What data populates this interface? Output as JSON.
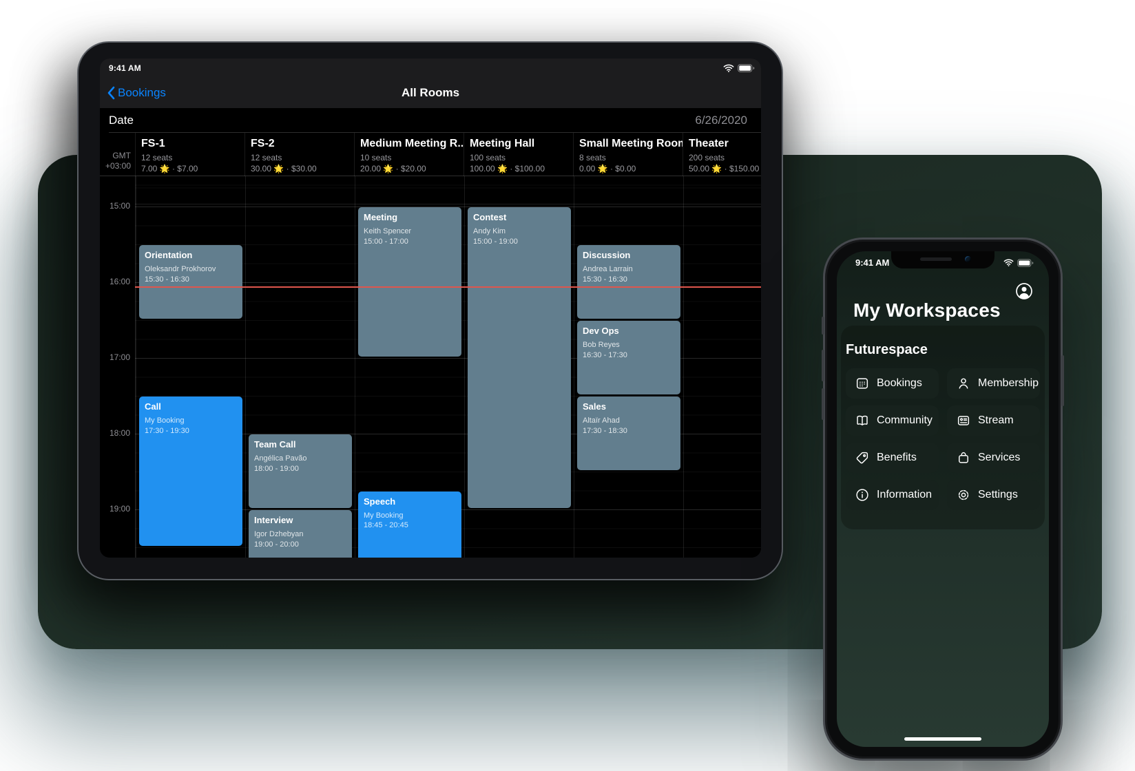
{
  "colors": {
    "ios_blue": "#0A84FF",
    "event_slate": "#627E8E",
    "event_blue": "#2191F0",
    "now_line": "#E0564D",
    "phone_bg": "#1E2D27",
    "button_bg": "#17221D"
  },
  "ipad": {
    "status": {
      "time": "9:41 AM"
    },
    "nav": {
      "back_label": "Bookings",
      "title": "All Rooms"
    },
    "date_row": {
      "label": "Date",
      "value": "6/26/2020"
    },
    "timezone": {
      "line1": "GMT",
      "line2": "+03:00"
    },
    "rooms": [
      {
        "name": "FS-1",
        "seats": "12 seats",
        "price": "7.00 🌟 · $7.00"
      },
      {
        "name": "FS-2",
        "seats": "12 seats",
        "price": "30.00 🌟 · $30.00"
      },
      {
        "name": "Medium Meeting R...",
        "seats": "10 seats",
        "price": "20.00 🌟 · $20.00"
      },
      {
        "name": "Meeting Hall",
        "seats": "100 seats",
        "price": "100.00 🌟 · $100.00"
      },
      {
        "name": "Small Meeting Room",
        "seats": "8 seats",
        "price": "0.00 🌟 · $0.00"
      },
      {
        "name": "Theater",
        "seats": "200 seats",
        "price": "50.00 🌟 · $150.00"
      }
    ],
    "times": [
      "15:00",
      "16:00",
      "17:00",
      "18:00",
      "19:00"
    ],
    "current_time": 16.05,
    "events": [
      {
        "room": 0,
        "title": "Orientation",
        "person": "Oleksandr Prokhorov",
        "time": "15:30 - 16:30",
        "start": 15.5,
        "end": 16.5,
        "color": "slate"
      },
      {
        "room": 0,
        "title": "Call",
        "person": "My Booking",
        "time": "17:30 - 19:30",
        "start": 17.5,
        "end": 19.5,
        "color": "blue"
      },
      {
        "room": 1,
        "title": "Team Call",
        "person": "Angélica Pavão",
        "time": "18:00 - 19:00",
        "start": 18,
        "end": 19,
        "color": "slate"
      },
      {
        "room": 1,
        "title": "Interview",
        "person": "Igor Dzhebyan",
        "time": "19:00 - 20:00",
        "start": 19,
        "end": 20,
        "color": "slate"
      },
      {
        "room": 2,
        "title": "Meeting",
        "person": "Keith Spencer",
        "time": "15:00 - 17:00",
        "start": 15,
        "end": 17,
        "color": "slate"
      },
      {
        "room": 2,
        "title": "Speech",
        "person": "My Booking",
        "time": "18:45 - 20:45",
        "start": 18.75,
        "end": 20.75,
        "color": "blue"
      },
      {
        "room": 3,
        "title": "Contest",
        "person": "Andy Kim",
        "time": "15:00 - 19:00",
        "start": 15,
        "end": 19,
        "color": "slate"
      },
      {
        "room": 4,
        "title": "Discussion",
        "person": "Andrea Larrain",
        "time": "15:30 - 16:30",
        "start": 15.5,
        "end": 16.5,
        "color": "slate"
      },
      {
        "room": 4,
        "title": "Dev Ops",
        "person": "Bob Reyes",
        "time": "16:30 - 17:30",
        "start": 16.5,
        "end": 17.5,
        "color": "slate"
      },
      {
        "room": 4,
        "title": "Sales",
        "person": "Altaïr Ahad",
        "time": "17:30 - 18:30",
        "start": 17.5,
        "end": 18.5,
        "color": "slate"
      }
    ]
  },
  "phone": {
    "status": {
      "time": "9:41 AM"
    },
    "title": "My Workspaces",
    "section": "Futurespace",
    "buttons": [
      {
        "label": "Bookings",
        "icon": "calendar-icon"
      },
      {
        "label": "Membership",
        "icon": "person-icon"
      },
      {
        "label": "Community",
        "icon": "book-icon"
      },
      {
        "label": "Stream",
        "icon": "card-icon"
      },
      {
        "label": "Benefits",
        "icon": "tag-icon"
      },
      {
        "label": "Services",
        "icon": "bag-icon"
      },
      {
        "label": "Information",
        "icon": "info-icon"
      },
      {
        "label": "Settings",
        "icon": "gear-icon"
      }
    ]
  }
}
